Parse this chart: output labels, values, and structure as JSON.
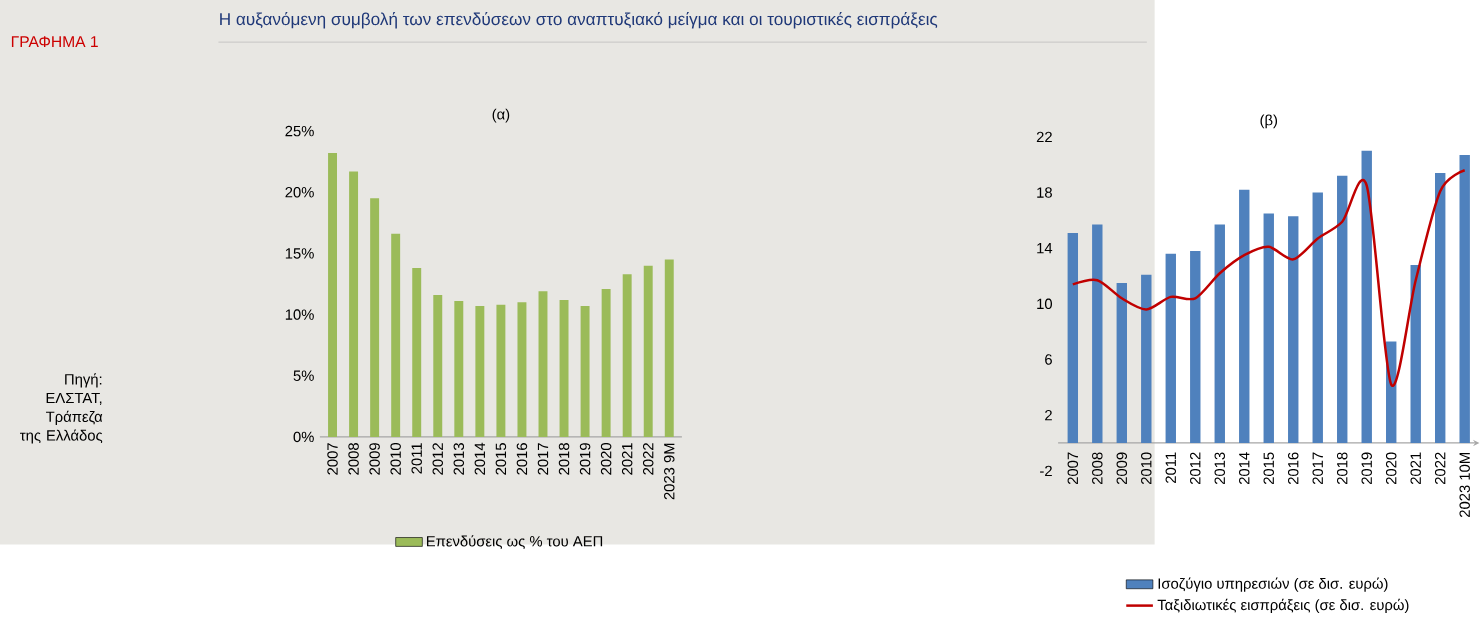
{
  "chart_data": [
    {
      "type": "bar",
      "title": "(α)",
      "annotations": [
        "ΓΡΑΦΗΜΑ 1",
        "Η αυξανόμενη συμβολή των επενδύσεων στο αναπτυξιακό μείγμα και οι τουριστικές εισπράξεις",
        "Πηγή: ΕΛΣΤΑΤ, Τράπεζα της Ελλάδος"
      ],
      "categories": [
        "2007",
        "2008",
        "2009",
        "2010",
        "2011",
        "2012",
        "2013",
        "2014",
        "2015",
        "2016",
        "2017",
        "2018",
        "2019",
        "2020",
        "2021",
        "2022",
        "2023 9M"
      ],
      "series": [
        {
          "name": "Επενδύσεις ως % του ΑΕΠ",
          "color": "#9bbb59",
          "values": [
            23.2,
            21.7,
            19.5,
            16.6,
            13.8,
            11.6,
            11.1,
            10.7,
            10.8,
            11.0,
            11.9,
            11.2,
            10.7,
            12.1,
            13.3,
            14.0,
            14.5
          ]
        }
      ],
      "ylim": [
        0,
        25
      ],
      "yticks": [
        {
          "value": 0,
          "label": "0%"
        },
        {
          "value": 5,
          "label": "5%"
        },
        {
          "value": 10,
          "label": "10%"
        },
        {
          "value": 15,
          "label": "15%"
        },
        {
          "value": 20,
          "label": "20%"
        },
        {
          "value": 25,
          "label": "25%"
        }
      ],
      "legend": "bottom"
    },
    {
      "type": "bar",
      "title": "(β)",
      "categories": [
        "2007",
        "2008",
        "2009",
        "2010",
        "2011",
        "2012",
        "2013",
        "2014",
        "2015",
        "2016",
        "2017",
        "2018",
        "2019",
        "2020",
        "2021",
        "2022",
        "2023 10M"
      ],
      "series": [
        {
          "name": "Ισοζύγιο υπηρεσιών (σε δισ. ευρώ)",
          "color": "#4f81bd",
          "values": [
            15.1,
            15.7,
            11.5,
            12.1,
            13.6,
            13.8,
            15.7,
            18.2,
            16.5,
            16.3,
            18.0,
            19.2,
            21.0,
            7.3,
            12.8,
            19.4,
            20.7
          ]
        },
        {
          "name": "Ταξιδιωτικές εισπράξεις (σε δισ. ευρώ)",
          "type": "line",
          "color": "#c00000",
          "values": [
            11.4,
            11.7,
            10.4,
            9.6,
            10.5,
            10.4,
            12.2,
            13.5,
            14.1,
            13.2,
            14.7,
            15.9,
            18.5,
            4.2,
            11.7,
            18.1,
            19.6
          ]
        }
      ],
      "ylim": [
        -2,
        22
      ],
      "yticks": [
        -2,
        2,
        6,
        10,
        14,
        18,
        22
      ],
      "legend": "bottom"
    }
  ]
}
